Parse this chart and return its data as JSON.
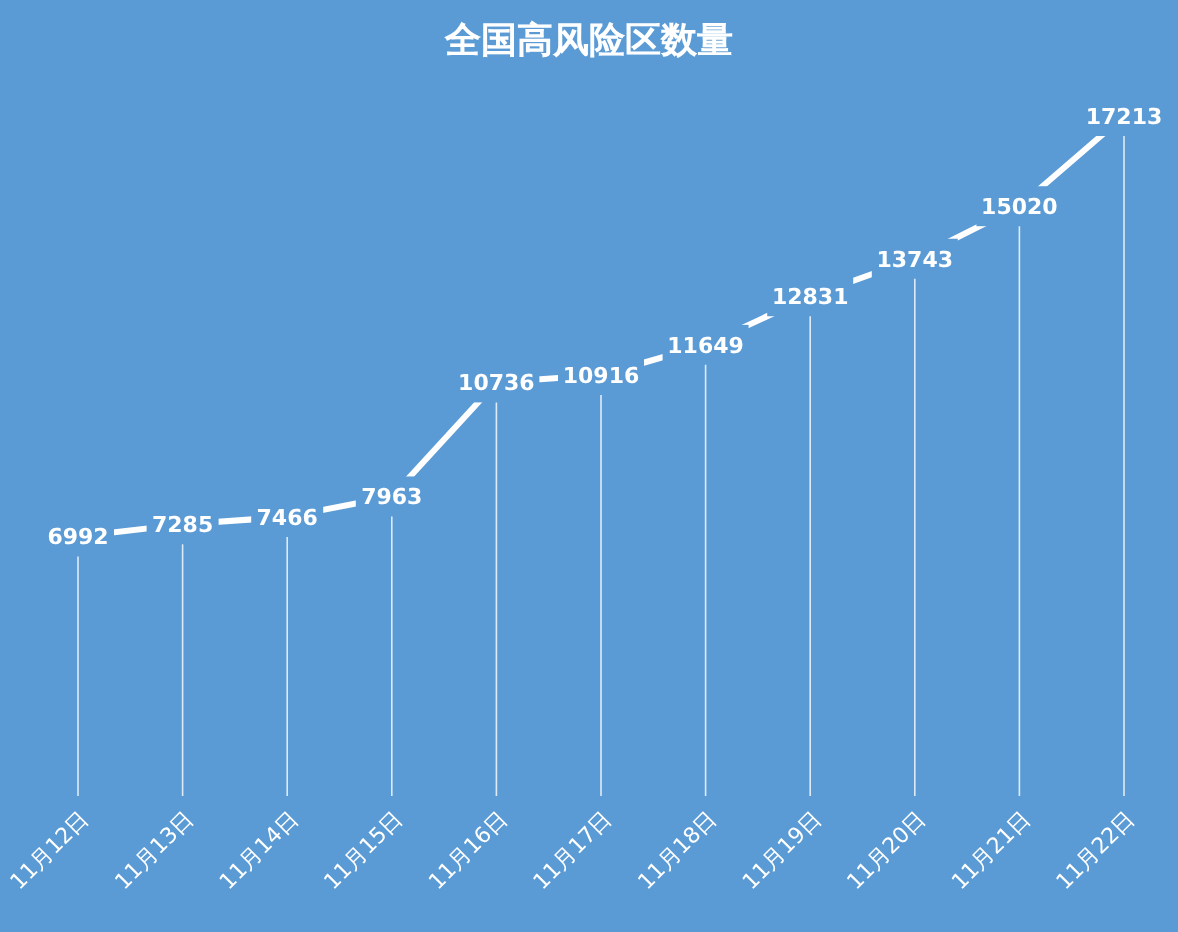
{
  "chart_data": {
    "type": "line",
    "title": "全国高风险区数量",
    "categories": [
      "11月12日",
      "11月13日",
      "11月14日",
      "11月15日",
      "11月16日",
      "11月17日",
      "11月18日",
      "11月19日",
      "11月20日",
      "11月21日",
      "11月22日"
    ],
    "series": [
      {
        "color": "#ffffff",
        "values": [
          6992,
          7285,
          7466,
          7963,
          10736,
          10916,
          11649,
          12831,
          13743,
          15020,
          17213
        ]
      }
    ],
    "data_labels": true,
    "grid": "x",
    "line_style": "solid",
    "tick_labels": "x"
  }
}
